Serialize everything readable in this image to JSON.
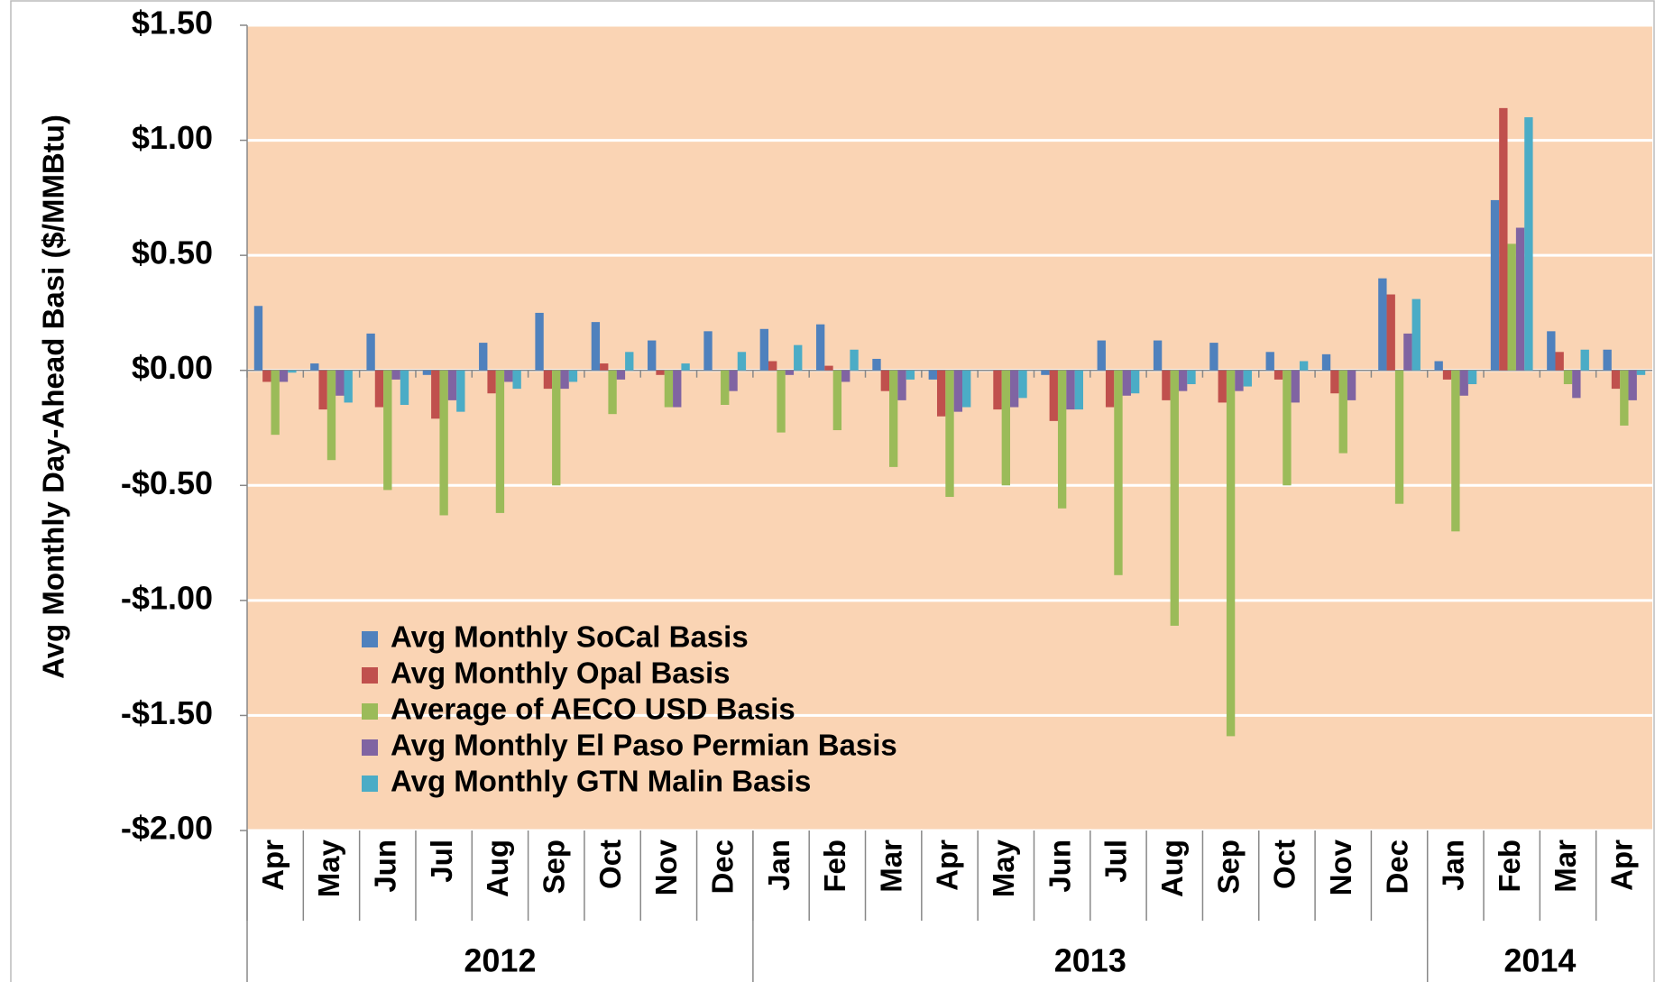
{
  "chart_data": {
    "type": "bar",
    "y_label": "Avg Monthly Day-Ahead Basi ($/MMBtu)",
    "categories": [
      "Apr",
      "May",
      "Jun",
      "Jul",
      "Aug",
      "Sep",
      "Oct",
      "Nov",
      "Dec",
      "Jan",
      "Feb",
      "Mar",
      "Apr",
      "May",
      "Jun",
      "Jul",
      "Aug",
      "Sep",
      "Oct",
      "Nov",
      "Dec",
      "Jan",
      "Feb",
      "Mar",
      "Apr"
    ],
    "x_groups": [
      {
        "label": "2012",
        "size": 9
      },
      {
        "label": "2013",
        "size": 12
      },
      {
        "label": "2014",
        "size": 4
      }
    ],
    "series": [
      {
        "name": "Avg Monthly SoCal Basis",
        "color": "#4f81bd",
        "values": [
          0.28,
          0.03,
          0.16,
          -0.02,
          0.12,
          0.25,
          0.21,
          0.13,
          0.17,
          0.18,
          0.2,
          0.05,
          -0.04,
          0.0,
          -0.02,
          0.13,
          0.13,
          0.12,
          0.08,
          0.07,
          0.4,
          0.04,
          0.74,
          0.17,
          0.09
        ]
      },
      {
        "name": "Avg Monthly Opal Basis",
        "color": "#c0504d",
        "values": [
          -0.05,
          -0.17,
          -0.16,
          -0.21,
          -0.1,
          -0.08,
          0.03,
          -0.02,
          0.0,
          0.04,
          0.02,
          -0.09,
          -0.2,
          -0.17,
          -0.22,
          -0.16,
          -0.13,
          -0.14,
          -0.04,
          -0.1,
          0.33,
          -0.04,
          1.14,
          0.08,
          -0.08
        ]
      },
      {
        "name": "Average of AECO USD Basis",
        "color": "#9bbb59",
        "values": [
          -0.28,
          -0.39,
          -0.52,
          -0.63,
          -0.62,
          -0.5,
          -0.19,
          -0.16,
          -0.15,
          -0.27,
          -0.26,
          -0.42,
          -0.55,
          -0.5,
          -0.6,
          -0.89,
          -1.11,
          -1.59,
          -0.5,
          -0.36,
          -0.58,
          -0.7,
          0.55,
          -0.06,
          -0.24
        ]
      },
      {
        "name": "Avg Monthly El Paso Permian Basis",
        "color": "#8064a2",
        "values": [
          -0.05,
          -0.11,
          -0.04,
          -0.13,
          -0.05,
          -0.08,
          -0.04,
          -0.16,
          -0.09,
          -0.02,
          -0.05,
          -0.13,
          -0.18,
          -0.16,
          -0.17,
          -0.11,
          -0.09,
          -0.09,
          -0.14,
          -0.13,
          0.16,
          -0.11,
          0.62,
          -0.12,
          -0.13
        ]
      },
      {
        "name": "Avg Monthly GTN Malin Basis",
        "color": "#4bacc6",
        "values": [
          -0.01,
          -0.14,
          -0.15,
          -0.18,
          -0.08,
          -0.05,
          0.08,
          0.03,
          0.08,
          0.11,
          0.09,
          -0.04,
          -0.16,
          -0.12,
          -0.17,
          -0.1,
          -0.06,
          -0.07,
          0.04,
          0.0,
          0.31,
          -0.06,
          1.1,
          0.09,
          -0.02
        ]
      }
    ],
    "ylim": [
      -2,
      1.5
    ],
    "yticks": [
      {
        "value": -2,
        "label": "-$2.00"
      },
      {
        "value": -1.5,
        "label": "-$1.50"
      },
      {
        "value": -1,
        "label": "-$1.00"
      },
      {
        "value": -0.5,
        "label": "-$0.50"
      },
      {
        "value": 0,
        "label": "$0.00"
      },
      {
        "value": 0.5,
        "label": "$0.50"
      },
      {
        "value": 1,
        "label": "$1.00"
      },
      {
        "value": 1.5,
        "label": "$1.50"
      }
    ],
    "grid": true,
    "plot_background": "#fad4b4",
    "grid_color": "#ffffff"
  }
}
